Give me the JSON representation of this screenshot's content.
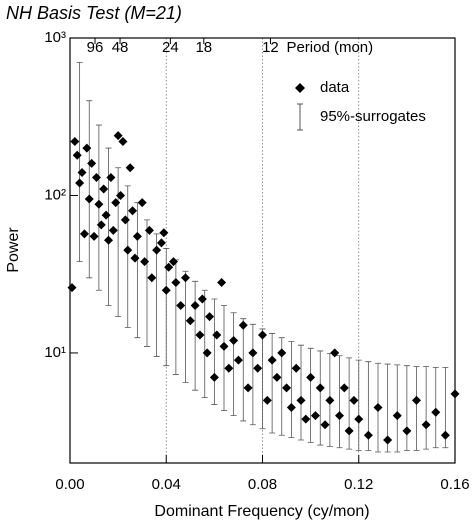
{
  "chart_data": {
    "type": "scatter",
    "title": "NH Basis Test (M=21)",
    "x_label": "Dominant Frequency (cy/mon)",
    "y_label": "Power",
    "x2_label": "Period (mon)",
    "ylog": true,
    "grid": true,
    "legend": "top-right",
    "xlim": [
      0,
      0.16
    ],
    "ylim": [
      2,
      1000
    ],
    "xticks": [
      {
        "value": 0,
        "label": "0.00"
      },
      0.04,
      0.08,
      0.12,
      0.16
    ],
    "yticks": [
      {
        "value": 10,
        "label": "10¹"
      },
      {
        "value": 100,
        "label": "10²"
      },
      {
        "value": 1000,
        "label": "10³"
      }
    ],
    "x2ticks": [
      {
        "value": 0.0104,
        "label": "96"
      },
      {
        "value": 0.0208,
        "label": "48"
      },
      {
        "value": 0.0417,
        "label": "24"
      },
      {
        "value": 0.0556,
        "label": "18"
      },
      {
        "value": 0.0833,
        "label": "12"
      }
    ],
    "x": [
      0.0,
      0.002,
      0.003,
      0.004,
      0.005,
      0.006,
      0.007,
      0.008,
      0.009,
      0.01,
      0.011,
      0.012,
      0.013,
      0.014,
      0.015,
      0.016,
      0.017,
      0.018,
      0.019,
      0.02,
      0.021,
      0.022,
      0.023,
      0.024,
      0.025,
      0.026,
      0.027,
      0.028,
      0.03,
      0.031,
      0.033,
      0.034,
      0.036,
      0.038,
      0.039,
      0.04,
      0.041,
      0.043,
      0.044,
      0.046,
      0.048,
      0.05,
      0.052,
      0.054,
      0.055,
      0.057,
      0.058,
      0.06,
      0.061,
      0.063,
      0.064,
      0.066,
      0.068,
      0.07,
      0.072,
      0.074,
      0.076,
      0.078,
      0.08,
      0.082,
      0.084,
      0.086,
      0.088,
      0.09,
      0.092,
      0.094,
      0.096,
      0.098,
      0.1,
      0.102,
      0.104,
      0.106,
      0.108,
      0.11,
      0.112,
      0.114,
      0.116,
      0.118,
      0.12,
      0.124,
      0.128,
      0.132,
      0.136,
      0.14,
      0.144,
      0.148,
      0.152,
      0.156,
      0.16
    ],
    "series": [
      {
        "name": "data",
        "color": "#000000",
        "values": [
          26,
          220,
          180,
          120,
          140,
          57,
          200,
          95,
          160,
          55,
          130,
          88,
          65,
          110,
          75,
          52,
          130,
          60,
          90,
          240,
          100,
          220,
          70,
          45,
          150,
          80,
          40,
          55,
          90,
          38,
          60,
          30,
          45,
          50,
          58,
          25,
          35,
          38,
          28,
          20,
          30,
          16,
          20,
          13,
          22,
          10,
          17,
          7,
          13,
          28,
          11,
          8,
          12,
          9,
          15,
          6,
          10,
          8,
          13,
          5,
          9,
          7,
          10,
          6,
          4.5,
          8,
          5,
          3.8,
          7,
          4,
          6,
          3.5,
          5,
          10,
          4,
          6,
          3.2,
          5,
          3.8,
          3,
          4.5,
          2.8,
          4,
          3.2,
          5,
          3.5,
          4.2,
          3,
          5.5
        ]
      }
    ],
    "surrogates": {
      "name": "95%-surrogates",
      "color": "#555555",
      "x": [
        0.004,
        0.008,
        0.012,
        0.016,
        0.02,
        0.024,
        0.028,
        0.032,
        0.036,
        0.04,
        0.044,
        0.048,
        0.052,
        0.056,
        0.06,
        0.064,
        0.068,
        0.072,
        0.076,
        0.08,
        0.084,
        0.088,
        0.092,
        0.096,
        0.1,
        0.104,
        0.108,
        0.112,
        0.116,
        0.12,
        0.124,
        0.128,
        0.132,
        0.136,
        0.14,
        0.144,
        0.148,
        0.152,
        0.156
      ],
      "lower": [
        38,
        30,
        25,
        20,
        17,
        14.5,
        12.5,
        11,
        9.5,
        8.3,
        7.3,
        6.5,
        5.8,
        5.2,
        4.7,
        4.3,
        4.0,
        3.7,
        3.5,
        3.3,
        3.1,
        3.0,
        2.9,
        2.8,
        2.7,
        2.6,
        2.55,
        2.5,
        2.45,
        2.4,
        2.4,
        2.35,
        2.35,
        2.35,
        2.4,
        2.4,
        2.45,
        2.5,
        2.5
      ],
      "upper": [
        700,
        400,
        280,
        200,
        150,
        115,
        90,
        70,
        57,
        46,
        39,
        33,
        28.5,
        25,
        22,
        20,
        18,
        16.5,
        15.2,
        14.2,
        13.3,
        12.5,
        11.8,
        11.2,
        10.7,
        10.3,
        9.9,
        9.6,
        9.3,
        9.0,
        8.8,
        8.6,
        8.5,
        8.4,
        8.3,
        8.2,
        8.2,
        8.1,
        8.1
      ]
    }
  }
}
